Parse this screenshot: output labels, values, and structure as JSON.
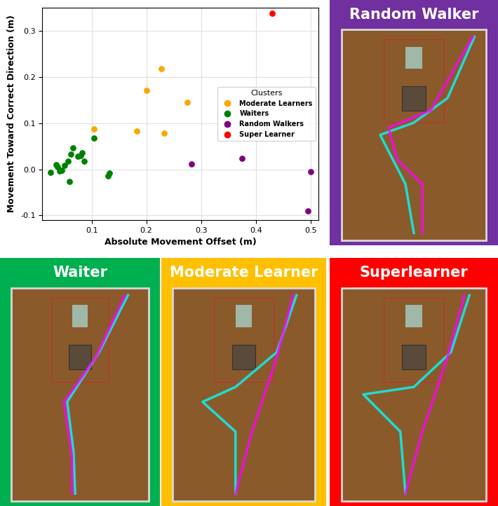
{
  "chart_data": {
    "type": "scatter",
    "x_label": "Absolute Movement Offset (m)",
    "y_label": "Movement Toward Correct Direction (m)",
    "legend_title": "Clusters",
    "legend": "center right",
    "grid": true,
    "xlim": [
      0.01,
      0.515
    ],
    "ylim": [
      -0.11,
      0.35
    ],
    "xticks": [
      0.1,
      0.2,
      0.3,
      0.4,
      0.5
    ],
    "yticks": [
      -0.1,
      {
        "value": 0,
        "label": "0.0"
      },
      0.1,
      0.2,
      0.3
    ],
    "series": [
      {
        "name": "Moderate Learners",
        "color": "orange",
        "x": [
          0.105,
          0.183,
          0.2,
          0.228,
          0.232,
          0.275
        ],
        "values": [
          0.087,
          0.083,
          0.17,
          0.218,
          0.078,
          0.145
        ]
      },
      {
        "name": "Waiters",
        "color": "green",
        "x": [
          0.025,
          0.035,
          0.038,
          0.042,
          0.045,
          0.05,
          0.057,
          0.06,
          0.062,
          0.066,
          0.075,
          0.08,
          0.083,
          0.087,
          0.105,
          0.13,
          0.132
        ],
        "values": [
          -0.006,
          0.01,
          0.005,
          -0.003,
          -0.002,
          0.008,
          0.018,
          -0.027,
          0.032,
          0.046,
          0.028,
          0.03,
          0.036,
          0.018,
          0.068,
          -0.015,
          -0.009
        ]
      },
      {
        "name": "Random Walkers",
        "color": "purple",
        "x": [
          0.282,
          0.375,
          0.5,
          0.495
        ],
        "values": [
          0.012,
          0.023,
          -0.005,
          -0.09
        ]
      },
      {
        "name": "Super Learner",
        "color": "red",
        "x": [
          0.43
        ],
        "values": [
          0.338
        ]
      }
    ]
  },
  "panels": [
    {
      "title": "Random Walker",
      "color": "#7030a0"
    },
    {
      "title": "Waiter",
      "color": "#00b050"
    },
    {
      "title": "Moderate Learner",
      "color": "#ffc000"
    },
    {
      "title": "Superlearner",
      "color": "#ff0000"
    }
  ]
}
